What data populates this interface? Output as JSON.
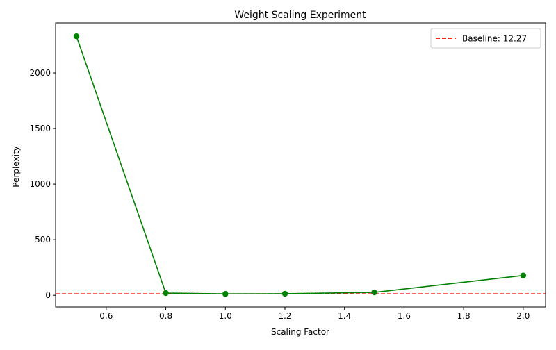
{
  "chart_data": {
    "type": "line",
    "title": "Weight Scaling Experiment",
    "xlabel": "Scaling Factor",
    "ylabel": "Perplexity",
    "xlim": [
      0.43,
      2.075
    ],
    "ylim": [
      -105,
      2450
    ],
    "xticks": [
      0.6,
      0.8,
      1.0,
      1.2,
      1.4,
      1.6,
      1.8,
      2.0
    ],
    "xtick_labels": [
      "0.6",
      "0.8",
      "1.0",
      "1.2",
      "1.4",
      "1.6",
      "1.8",
      "2.0"
    ],
    "yticks": [
      0,
      500,
      1000,
      1500,
      2000
    ],
    "ytick_labels": [
      "0",
      "500",
      "1000",
      "1500",
      "2000"
    ],
    "grid": false,
    "legend_position": "upper-right",
    "series": [
      {
        "x": [
          0.5,
          0.8,
          1.0,
          1.2,
          1.5,
          2.0
        ],
        "y": [
          2330,
          20,
          12.27,
          14,
          26,
          178
        ],
        "color": "#008000",
        "marker": "circle",
        "line_style": "solid"
      }
    ],
    "reference_lines": [
      {
        "orientation": "horizontal",
        "y": 12.27,
        "label": "Baseline: 12.27",
        "color": "#ff0000",
        "line_style": "dashed"
      }
    ]
  }
}
